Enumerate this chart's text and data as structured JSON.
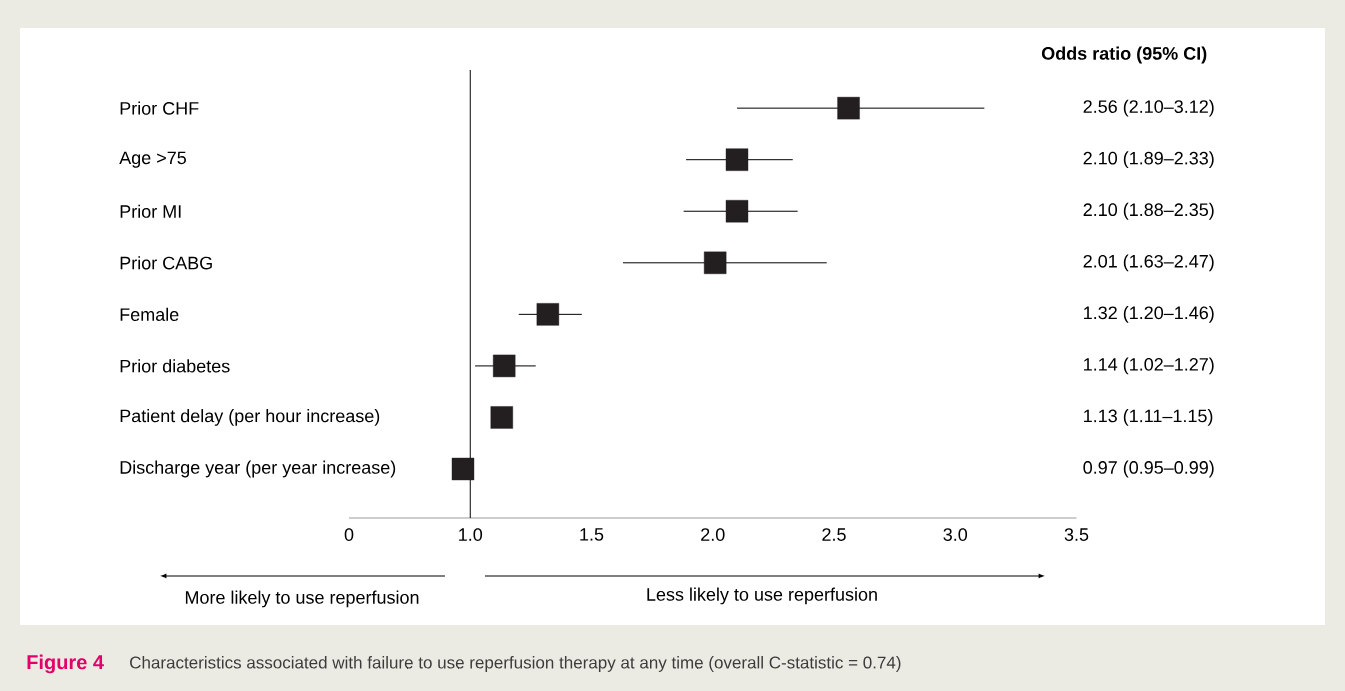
{
  "chart_data": {
    "type": "scatter",
    "orientation": "horizontal",
    "marker": "square",
    "color": "#231f20",
    "categories": [
      "Prior CHF",
      "Age >75",
      "Prior MI",
      "Prior CABG",
      "Female",
      "Prior diabetes",
      "Patient delay (per hour increase)",
      "Discharge year (per year increase)"
    ],
    "values": [
      2.56,
      2.1,
      2.1,
      2.01,
      1.32,
      1.14,
      1.13,
      0.97
    ],
    "errors": [
      [
        2.1,
        3.12
      ],
      [
        1.89,
        2.33
      ],
      [
        1.88,
        2.35
      ],
      [
        1.63,
        2.47
      ],
      [
        1.2,
        1.46
      ],
      [
        1.02,
        1.27
      ],
      null,
      null
    ],
    "value_labels": [
      "2.56 (2.10–3.12)",
      "2.10 (1.89–2.33)",
      "2.10 (1.88–2.35)",
      "2.01 (1.63–2.47)",
      "1.32 (1.20–1.46)",
      "1.14 (1.02–1.27)",
      "1.13 (1.11–1.15)",
      "0.97 (0.95–0.99)"
    ],
    "xlim": [
      0.5,
      3.5
    ],
    "xticks": [
      {
        "value": 0.5,
        "label": "0"
      },
      {
        "value": 1,
        "label": "1.0"
      },
      1.5,
      {
        "value": 2,
        "label": "2.0"
      },
      2.5,
      {
        "value": 3,
        "label": "3.0"
      },
      3.5
    ],
    "ref_lines": [
      {
        "axis": "x",
        "value": 1
      }
    ],
    "annotations": [
      "Odds ratio (95% CI)",
      "More likely to use reperfusion",
      "Less likely to use reperfusion",
      "Figure 4",
      "Characteristics associated with failure to use reperfusion therapy at any time (overall C-statistic = 0.74)"
    ]
  }
}
